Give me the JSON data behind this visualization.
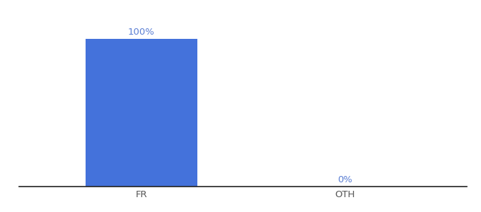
{
  "categories": [
    "FR",
    "OTH"
  ],
  "values": [
    100,
    0
  ],
  "bar_color": "#4472db",
  "label_color": "#5b7fd4",
  "axis_color": "#222222",
  "tick_color": "#555555",
  "background_color": "#ffffff",
  "ylim": [
    0,
    115
  ],
  "bar_width": 0.55,
  "label_fontsize": 9.5,
  "tick_fontsize": 9.5,
  "value_labels": [
    "100%",
    "0%"
  ]
}
